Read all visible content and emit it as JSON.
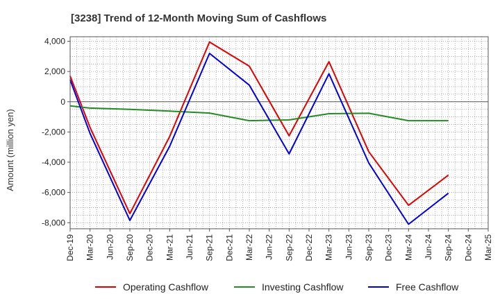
{
  "chart_data": {
    "type": "line",
    "title": "[3238]  Trend of 12-Month Moving Sum of Cashflows",
    "ylabel": "Amount (million yen)",
    "xlabel": "",
    "ylim": [
      -8400,
      4300
    ],
    "yticks": [
      4000,
      2000,
      0,
      -2000,
      -4000,
      -6000,
      -8000
    ],
    "ytick_labels": [
      "4,000",
      "2,000",
      "0",
      "-2,000",
      "-4,000",
      "-6,000",
      "-8,000"
    ],
    "categories": [
      "Dec-19",
      "Mar-20",
      "Jun-20",
      "Sep-20",
      "Dec-20",
      "Mar-21",
      "Jun-21",
      "Sep-21",
      "Dec-21",
      "Mar-22",
      "Jun-22",
      "Sep-22",
      "Dec-22",
      "Mar-23",
      "Jun-23",
      "Sep-23",
      "Dec-23",
      "Mar-24",
      "Jun-24",
      "Sep-24",
      "Dec-24",
      "Mar-25"
    ],
    "grid": true,
    "legend_position": "bottom",
    "series": [
      {
        "name": "Operating Cashflow",
        "color": "#e00000",
        "values": [
          1700,
          -1700,
          null,
          -7400,
          null,
          -2300,
          null,
          3950,
          null,
          2350,
          null,
          -2250,
          null,
          2650,
          null,
          -3300,
          null,
          -6850,
          null,
          -4850,
          null,
          null
        ]
      },
      {
        "name": "Investing Cashflow",
        "color": "#228b22",
        "values": [
          -270,
          -420,
          null,
          -500,
          null,
          -620,
          null,
          -750,
          null,
          -1250,
          null,
          -1200,
          null,
          -790,
          null,
          -760,
          null,
          -1250,
          null,
          -1250,
          null,
          null
        ]
      },
      {
        "name": "Free Cashflow",
        "color": "#0000dd",
        "values": [
          1450,
          -2100,
          null,
          -7850,
          null,
          -2950,
          null,
          3200,
          null,
          1100,
          null,
          -3450,
          null,
          1850,
          null,
          -4050,
          null,
          -8100,
          null,
          -6050,
          null,
          null
        ]
      }
    ]
  }
}
